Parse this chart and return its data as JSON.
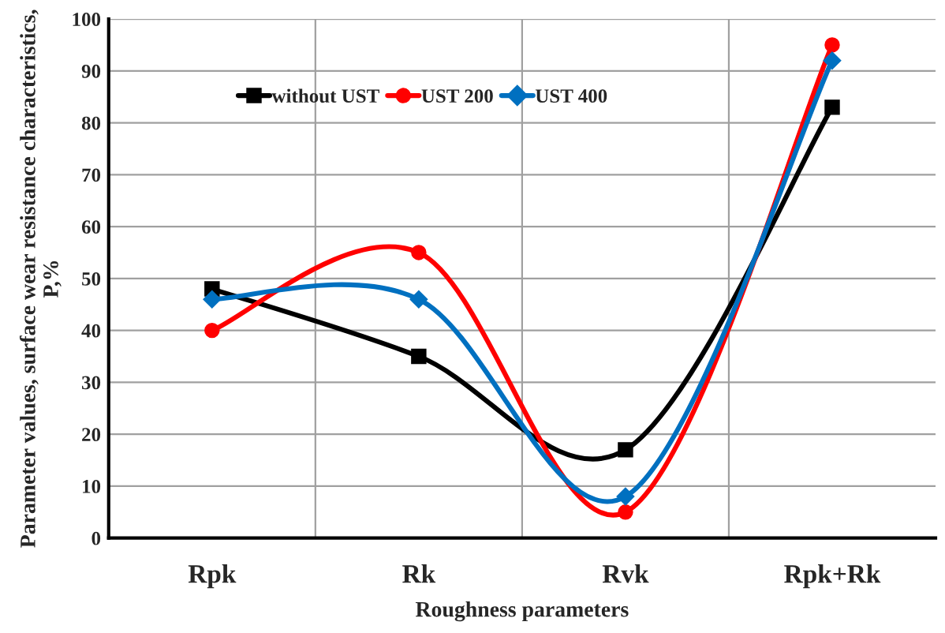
{
  "chart_data": {
    "type": "line",
    "xlabel": "Roughness parameters",
    "ylabel": "Parameter values, surface wear resistance characteristics, P,%",
    "categories": [
      "Rpk",
      "Rk",
      "Rvk",
      "Rpk+Rk"
    ],
    "series": [
      {
        "name": "without UST",
        "color": "#000000",
        "marker": "square",
        "values": [
          48,
          35,
          17,
          83
        ]
      },
      {
        "name": "UST 200",
        "color": "#ff0000",
        "marker": "circle",
        "values": [
          40,
          55,
          5,
          95
        ]
      },
      {
        "name": "UST 400",
        "color": "#0070c0",
        "marker": "diamond",
        "values": [
          46,
          46,
          8,
          92
        ]
      }
    ],
    "ylim": [
      0,
      100
    ],
    "yticks": [
      0,
      10,
      20,
      30,
      40,
      50,
      60,
      70,
      80,
      90,
      100
    ],
    "grid": true,
    "legend": "top"
  }
}
